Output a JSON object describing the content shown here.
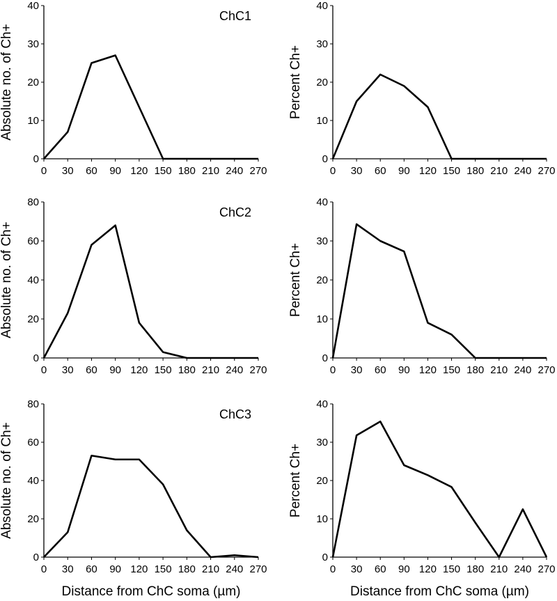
{
  "chart_data": [
    {
      "type": "line",
      "label": "ChC1",
      "ylabel": "Absolute no. of Ch+",
      "xlabel": "",
      "x": [
        0,
        30,
        60,
        90,
        120,
        150,
        180,
        210,
        240,
        270
      ],
      "values": [
        0,
        7,
        25,
        27,
        13.5,
        0,
        0,
        0,
        0,
        0
      ],
      "ylim": [
        0,
        40
      ],
      "yticks": [
        0,
        10,
        20,
        30,
        40
      ]
    },
    {
      "type": "line",
      "label": "",
      "ylabel": "Percent Ch+",
      "xlabel": "",
      "x": [
        0,
        30,
        60,
        90,
        120,
        150,
        180,
        210,
        240,
        270
      ],
      "values": [
        0,
        15,
        22,
        19,
        13.5,
        0,
        0,
        0,
        0,
        0
      ],
      "ylim": [
        0,
        40
      ],
      "yticks": [
        0,
        10,
        20,
        30,
        40
      ]
    },
    {
      "type": "line",
      "label": "ChC2",
      "ylabel": "Absolute no. of Ch+",
      "xlabel": "",
      "x": [
        0,
        30,
        60,
        90,
        120,
        150,
        180,
        210,
        240,
        270
      ],
      "values": [
        0,
        23,
        58,
        68,
        18,
        3,
        0,
        0,
        0,
        0
      ],
      "ylim": [
        0,
        80
      ],
      "yticks": [
        0,
        20,
        40,
        60,
        80
      ]
    },
    {
      "type": "line",
      "label": "",
      "ylabel": "Percent Ch+",
      "xlabel": "",
      "x": [
        0,
        30,
        60,
        90,
        120,
        150,
        180,
        210,
        240,
        270
      ],
      "values": [
        0,
        34.3,
        30,
        27.3,
        9,
        6,
        0,
        0,
        0,
        0
      ],
      "ylim": [
        0,
        40
      ],
      "yticks": [
        0,
        10,
        20,
        30,
        40
      ]
    },
    {
      "type": "line",
      "label": "ChC3",
      "ylabel": "Absolute no. of Ch+",
      "xlabel": "Distance from ChC soma (µm)",
      "x": [
        0,
        30,
        60,
        90,
        120,
        150,
        180,
        210,
        240,
        270
      ],
      "values": [
        0,
        13,
        53,
        51,
        51,
        38,
        14,
        0,
        1,
        0
      ],
      "ylim": [
        0,
        80
      ],
      "yticks": [
        0,
        20,
        40,
        60,
        80
      ]
    },
    {
      "type": "line",
      "label": "",
      "ylabel": "Percent Ch+",
      "xlabel": "Distance from ChC soma (µm)",
      "x": [
        0,
        30,
        60,
        90,
        120,
        150,
        180,
        210,
        240,
        270
      ],
      "values": [
        0,
        31.8,
        35.4,
        24,
        21.4,
        18.3,
        9,
        0,
        12.5,
        0
      ],
      "ylim": [
        0,
        40
      ],
      "yticks": [
        0,
        10,
        20,
        30,
        40
      ]
    }
  ]
}
